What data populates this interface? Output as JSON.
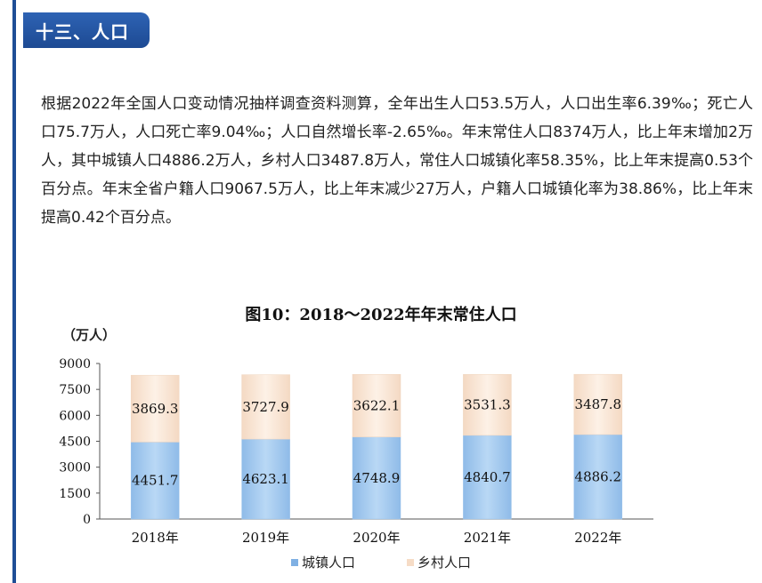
{
  "section": {
    "title": "十三、人口"
  },
  "paragraph": "根据2022年全国人口变动情况抽样调查资料测算，全年出生人口53.5万人，人口出生率6.39‰；死亡人口75.7万人，人口死亡率9.04‰；人口自然增长率-2.65‰。年末常住人口8374万人，比上年末增加2万人，其中城镇人口4886.2万人，乡村人口3487.8万人，常住人口城镇化率58.35%，比上年末提高0.53个百分点。年末全省户籍人口9067.5万人，比上年末减少27万人，户籍人口城镇化率为38.86%，比上年末提高0.42个百分点。",
  "colors": {
    "urban": "#a9cdf0",
    "rural": "#fbe8d8",
    "header": "#1f4e96"
  },
  "chart_data": {
    "type": "bar",
    "stacked": true,
    "title": "图10：2018～2022年年末常住人口",
    "ylabel": "（万人）",
    "xlabel": "",
    "ylim": [
      0,
      9000
    ],
    "yticks": [
      0,
      1500,
      3000,
      4500,
      6000,
      7500,
      9000
    ],
    "categories": [
      "2018年",
      "2019年",
      "2020年",
      "2021年",
      "2022年"
    ],
    "series": [
      {
        "name": "城镇人口",
        "values": [
          4451.7,
          4623.1,
          4748.9,
          4840.7,
          4886.2
        ]
      },
      {
        "name": "乡村人口",
        "values": [
          3869.3,
          3727.9,
          3622.1,
          3531.3,
          3487.8
        ]
      }
    ],
    "legend_position": "bottom"
  }
}
